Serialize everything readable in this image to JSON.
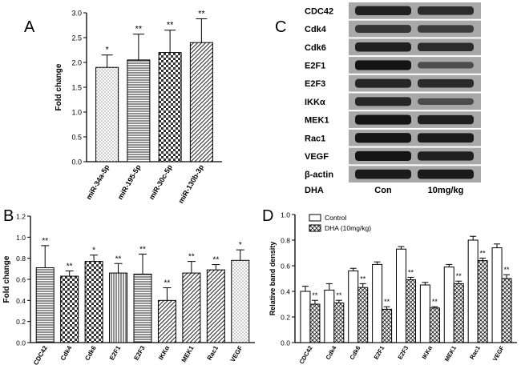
{
  "patterns": {
    "dots": "dots",
    "hatch_h": "hatch-horizontal",
    "checker": "checker",
    "diag": "diagonal",
    "vert": "vertical",
    "cross": "crosshatch"
  },
  "panels": {
    "A": "A",
    "B": "B",
    "C": "C",
    "D": "D"
  },
  "chart_data": [
    {
      "panel": "A",
      "type": "bar",
      "title": "",
      "xlabel": "",
      "ylabel": "Fold change",
      "ylim": [
        0,
        3.0
      ],
      "yticks": [
        "0.0",
        "0.5",
        "1.0",
        "1.5",
        "2.0",
        "2.5",
        "3.0"
      ],
      "categories": [
        "miR-34a-5p",
        "miR-195-5p",
        "miR-30c-5p",
        "miR-130b-3p"
      ],
      "values": [
        1.9,
        2.05,
        2.2,
        2.4
      ],
      "errors": [
        0.25,
        0.52,
        0.45,
        0.48
      ],
      "significance": [
        "*",
        "**",
        "**",
        "**"
      ],
      "fill_patterns": [
        "dots",
        "hatch-horizontal",
        "checker",
        "diagonal"
      ],
      "grid": false
    },
    {
      "panel": "B",
      "type": "bar",
      "title": "",
      "xlabel": "",
      "ylabel": "Fold change",
      "ylim": [
        0,
        1.2
      ],
      "yticks": [
        "0.0",
        "0.2",
        "0.4",
        "0.6",
        "0.8",
        "1.0",
        "1.2"
      ],
      "categories": [
        "CDC42",
        "Cdk4",
        "Cdk6",
        "E2F1",
        "E2F3",
        "IKKα",
        "MEK1",
        "Rac1",
        "VEGF"
      ],
      "values": [
        0.71,
        0.63,
        0.77,
        0.66,
        0.65,
        0.4,
        0.66,
        0.69,
        0.78
      ],
      "errors": [
        0.21,
        0.05,
        0.06,
        0.09,
        0.19,
        0.12,
        0.11,
        0.05,
        0.1
      ],
      "significance": [
        "**",
        "**",
        "*",
        "**",
        "**",
        "**",
        "**",
        "**",
        "*"
      ],
      "fill_patterns": [
        "hatch-horizontal",
        "checker",
        "checker",
        "vertical",
        "hatch-horizontal",
        "diagonal",
        "diagonal",
        "diagonal",
        "dots"
      ],
      "grid": false
    },
    {
      "panel": "C",
      "type": "western-blot",
      "proteins": [
        "CDC42",
        "Cdk4",
        "Cdk6",
        "E2F1",
        "E2F3",
        "IKKα",
        "MEK1",
        "Rac1",
        "VEGF",
        "β-actin"
      ],
      "treatment_label": "DHA",
      "lanes": [
        "Con",
        "10mg/kg"
      ],
      "band_intensity": {
        "Con": [
          0.8,
          0.6,
          0.8,
          0.9,
          0.75,
          0.75,
          0.9,
          0.9,
          0.9,
          0.85
        ],
        "10mg/kg": [
          0.7,
          0.55,
          0.7,
          0.4,
          0.7,
          0.4,
          0.8,
          0.85,
          0.8,
          0.85
        ]
      }
    },
    {
      "panel": "D",
      "type": "bar",
      "title": "",
      "xlabel": "",
      "ylabel": "Relative band density",
      "ylim": [
        0,
        1.0
      ],
      "yticks": [
        "0.0",
        "0.2",
        "0.4",
        "0.6",
        "0.8",
        "1.0"
      ],
      "categories": [
        "CDC42",
        "Cdk4",
        "Cdk6",
        "E2F1",
        "E2F3",
        "IKKα",
        "MEK1",
        "Rac1",
        "VEGF"
      ],
      "series": [
        {
          "name": "Control",
          "pattern": "none",
          "values": [
            0.4,
            0.41,
            0.56,
            0.61,
            0.73,
            0.45,
            0.59,
            0.8,
            0.74
          ],
          "errors": [
            0.04,
            0.05,
            0.02,
            0.02,
            0.02,
            0.02,
            0.02,
            0.03,
            0.03
          ],
          "significance": [
            "",
            "",
            "",
            "",
            "",
            "",
            "",
            "",
            ""
          ]
        },
        {
          "name": "DHA (10mg/kg)",
          "pattern": "crosshatch",
          "values": [
            0.3,
            0.31,
            0.43,
            0.26,
            0.49,
            0.27,
            0.46,
            0.64,
            0.5
          ],
          "errors": [
            0.03,
            0.02,
            0.03,
            0.02,
            0.02,
            0.01,
            0.02,
            0.02,
            0.03
          ],
          "significance": [
            "**",
            "**",
            "**",
            "**",
            "**",
            "**",
            "**",
            "**",
            "**"
          ]
        }
      ],
      "legend_position": "top-left",
      "grid": false
    }
  ]
}
